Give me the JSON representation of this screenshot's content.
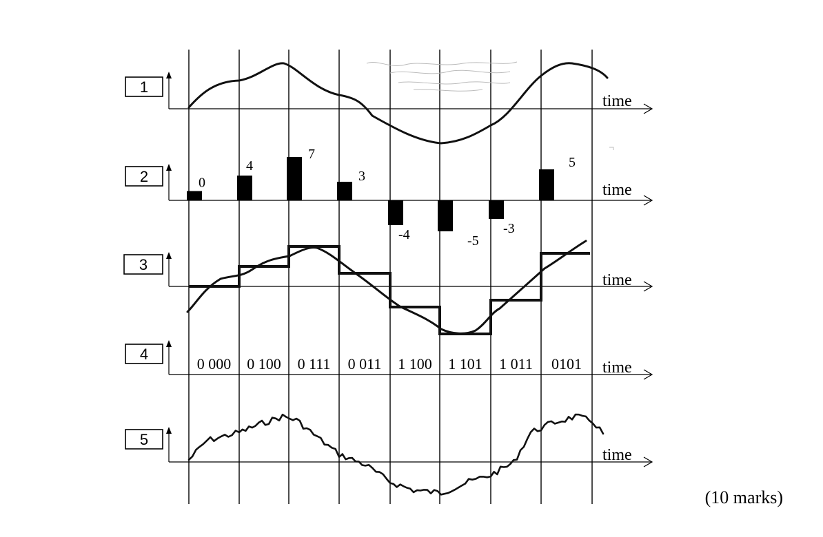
{
  "rows": [
    {
      "id": "1",
      "axis_label": "time"
    },
    {
      "id": "2",
      "axis_label": "time"
    },
    {
      "id": "3",
      "axis_label": "time"
    },
    {
      "id": "4",
      "axis_label": "time"
    },
    {
      "id": "5",
      "axis_label": "time"
    }
  ],
  "samples": [
    0,
    4,
    7,
    3,
    -4,
    -5,
    -3,
    5
  ],
  "sample_labels": [
    "0",
    "4",
    "7",
    "3",
    "-4",
    "-5",
    "-3",
    "5"
  ],
  "codes": [
    "0 000",
    "0 100",
    "0 111",
    "0 011",
    "1 100",
    "1 101",
    "1 011",
    "0101"
  ],
  "marks": "(10 marks)"
}
